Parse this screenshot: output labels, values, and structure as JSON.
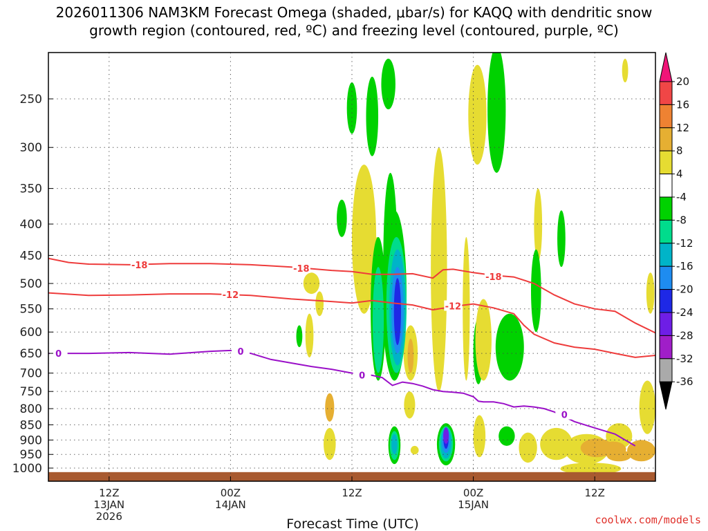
{
  "chart_data": {
    "type": "heatmap",
    "title_lines": [
      "2026011306 NAM3KM Forecast Omega (shaded, μbar/s) for KAQQ with dendritic snow",
      "growth region (contoured, red, ºC) and freezing level (contoured, purple, ºC)"
    ],
    "xlabel": "Forecast Time (UTC)",
    "x_start_hour": 6,
    "x_end_hour": 66,
    "x_ticks": [
      {
        "hour": 12,
        "labels": [
          "12Z",
          "13JAN",
          "2026"
        ]
      },
      {
        "hour": 24,
        "labels": [
          "00Z",
          "14JAN"
        ]
      },
      {
        "hour": 36,
        "labels": [
          "12Z"
        ]
      },
      {
        "hour": 48,
        "labels": [
          "00Z",
          "15JAN"
        ]
      },
      {
        "hour": 60,
        "labels": [
          "12Z"
        ]
      }
    ],
    "y_axis": {
      "scale": "log",
      "reversed": true,
      "range": [
        200,
        1030
      ]
    },
    "y_ticks": [
      250,
      300,
      350,
      400,
      450,
      500,
      550,
      600,
      650,
      700,
      750,
      800,
      850,
      900,
      950,
      1000
    ],
    "grid": true,
    "surface_pressure": 1010,
    "colorbar": {
      "labels": [
        "20",
        "16",
        "12",
        "8",
        "4",
        "-4",
        "-8",
        "-12",
        "-16",
        "-20",
        "-24",
        "-28",
        "-32",
        "-36"
      ],
      "colors": [
        "#f01478",
        "#f04646",
        "#ee8232",
        "#e6af32",
        "#e6dc32",
        "#ffffff",
        "#00d200",
        "#00dc8c",
        "#00b4c8",
        "#1e8cf0",
        "#1e28e6",
        "#6e1ee6",
        "#a01ec8",
        "#aaaaaa",
        "#000000"
      ]
    },
    "colors": {
      "dendritic": "#ee3b3b",
      "freezing": "#9a10c8",
      "ground": "#a85a30",
      "credit": "#e0302a"
    },
    "contours": [
      {
        "name": "dgz_top",
        "label": "-18",
        "color": "#ee3b3b",
        "points": [
          [
            6,
            455
          ],
          [
            8,
            462
          ],
          [
            10,
            465
          ],
          [
            14,
            466
          ],
          [
            18,
            464
          ],
          [
            22,
            464
          ],
          [
            26,
            466
          ],
          [
            30,
            470
          ],
          [
            34,
            476
          ],
          [
            36,
            478
          ],
          [
            38,
            483
          ],
          [
            40,
            483
          ],
          [
            42,
            482
          ],
          [
            44,
            490
          ],
          [
            45,
            475
          ],
          [
            46,
            474
          ],
          [
            48,
            480
          ],
          [
            50,
            485
          ],
          [
            52,
            488
          ],
          [
            54,
            500
          ],
          [
            56,
            522
          ],
          [
            58,
            540
          ],
          [
            60,
            550
          ],
          [
            62,
            555
          ],
          [
            64,
            580
          ],
          [
            66,
            602
          ]
        ],
        "label_at": [
          [
            15,
            466
          ],
          [
            31,
            472
          ],
          [
            50,
            487
          ]
        ]
      },
      {
        "name": "dgz_bottom",
        "label": "-12",
        "color": "#ee3b3b",
        "points": [
          [
            6,
            518
          ],
          [
            10,
            523
          ],
          [
            14,
            522
          ],
          [
            18,
            520
          ],
          [
            22,
            520
          ],
          [
            26,
            523
          ],
          [
            30,
            530
          ],
          [
            34,
            535
          ],
          [
            36,
            538
          ],
          [
            38,
            533
          ],
          [
            40,
            538
          ],
          [
            42,
            542
          ],
          [
            44,
            552
          ],
          [
            46,
            545
          ],
          [
            48,
            540
          ],
          [
            50,
            548
          ],
          [
            52,
            560
          ],
          [
            53,
            585
          ],
          [
            54,
            605
          ],
          [
            56,
            625
          ],
          [
            58,
            635
          ],
          [
            60,
            640
          ],
          [
            62,
            650
          ],
          [
            64,
            660
          ],
          [
            66,
            655
          ]
        ],
        "label_at": [
          [
            24,
            521
          ],
          [
            46,
            544
          ]
        ]
      },
      {
        "name": "freezing_level",
        "label": "0",
        "color": "#9a10c8",
        "points": [
          [
            6,
            650
          ],
          [
            10,
            650
          ],
          [
            14,
            648
          ],
          [
            18,
            652
          ],
          [
            22,
            645
          ],
          [
            24,
            643
          ],
          [
            26,
            650
          ],
          [
            28,
            665
          ],
          [
            32,
            683
          ],
          [
            34,
            690
          ],
          [
            36,
            700
          ],
          [
            38,
            706
          ],
          [
            39,
            712
          ],
          [
            40,
            733
          ],
          [
            41,
            724
          ],
          [
            42,
            728
          ],
          [
            43,
            735
          ],
          [
            44,
            745
          ],
          [
            45,
            750
          ],
          [
            46,
            752
          ],
          [
            47,
            755
          ],
          [
            48,
            765
          ],
          [
            48.5,
            778
          ],
          [
            49,
            780
          ],
          [
            50,
            780
          ],
          [
            51,
            785
          ],
          [
            52,
            795
          ],
          [
            53,
            792
          ],
          [
            54,
            795
          ],
          [
            55,
            800
          ],
          [
            56,
            810
          ],
          [
            58,
            840
          ],
          [
            60,
            860
          ],
          [
            62,
            880
          ],
          [
            63,
            900
          ],
          [
            64,
            920
          ]
        ],
        "label_at": [
          [
            7,
            650
          ],
          [
            25,
            645
          ],
          [
            37,
            705
          ],
          [
            57,
            818
          ]
        ]
      }
    ],
    "omega_blobs": [
      {
        "t": [
          38.5,
          39.0
        ],
        "p": [
          690,
          1000
        ],
        "v": [
          -16,
          -12,
          -8,
          -4,
          -20
        ]
      },
      {
        "t": [
          45.3,
          45.3
        ],
        "p": [
          700,
          1000
        ],
        "v": [
          -16,
          -12,
          -8,
          -4
        ]
      }
    ]
  },
  "credit": "coolwx.com/models"
}
